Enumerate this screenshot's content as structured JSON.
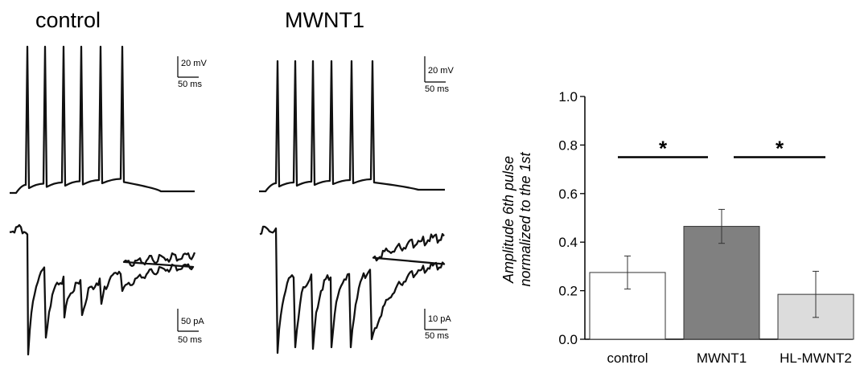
{
  "panels": {
    "control_title": "control",
    "mwnt1_title": "MWNT1"
  },
  "scale_bars": {
    "control_voltage": {
      "amplitude": "20 mV",
      "time": "50 ms"
    },
    "mwnt1_voltage": {
      "amplitude": "20 mV",
      "time": "50 ms"
    },
    "control_current": {
      "amplitude": "50 pA",
      "time": "50 ms"
    },
    "mwnt1_current": {
      "amplitude": "10 pA",
      "time": "50 ms"
    }
  },
  "chart_data": {
    "type": "bar",
    "categories": [
      "control",
      "MWNT1",
      "HL-MWNT2"
    ],
    "values": [
      0.275,
      0.465,
      0.185
    ],
    "errors": [
      0.068,
      0.07,
      0.095
    ],
    "bar_colors": [
      "#ffffff",
      "#808080",
      "#dcdcdc"
    ],
    "ylabel_line1": "Amplitude 6th pulse",
    "ylabel_line2": "normalized to the 1st",
    "xlabel": "",
    "ylim": [
      0.0,
      1.0
    ],
    "yticks": [
      "0.0",
      "0.2",
      "0.4",
      "0.6",
      "0.8",
      "1.0"
    ],
    "significance": [
      {
        "from": "control",
        "to": "MWNT1",
        "label": "*",
        "y": 0.75
      },
      {
        "from": "MWNT1",
        "to": "HL-MWNT2",
        "label": "*",
        "y": 0.75
      }
    ]
  }
}
